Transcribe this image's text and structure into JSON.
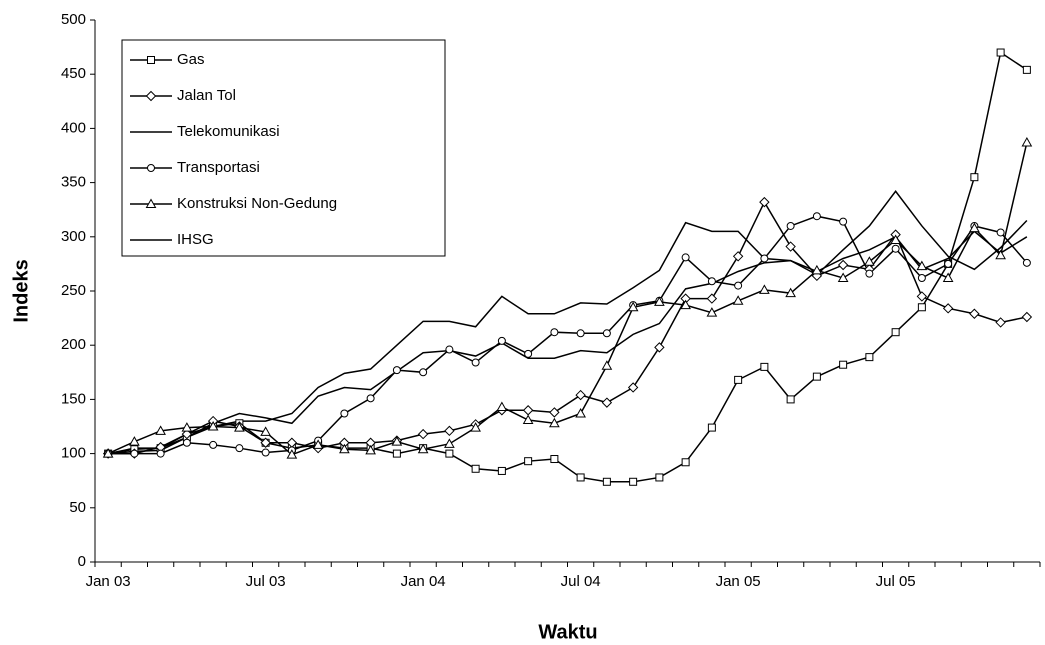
{
  "chart_data": {
    "type": "line",
    "x_label": "Waktu",
    "y_label": "Indeks",
    "categories": [
      "Jan 03",
      null,
      null,
      null,
      null,
      null,
      "Jul 03",
      null,
      null,
      null,
      null,
      null,
      "Jan 04",
      null,
      null,
      null,
      null,
      null,
      "Jul 04",
      null,
      null,
      null,
      null,
      null,
      "Jan 05",
      null,
      null,
      null,
      null,
      null,
      "Jul 05",
      null,
      null,
      null,
      null,
      null
    ],
    "ylim": [
      0,
      500
    ],
    "yticks": [
      0,
      50,
      100,
      150,
      200,
      250,
      300,
      350,
      400,
      450,
      500
    ],
    "grid": false,
    "legend": "upper left",
    "series": [
      {
        "name": "Gas",
        "color": "#000000",
        "marker": "square",
        "values": [
          100,
          104,
          105,
          115,
          125,
          128,
          110,
          105,
          108,
          105,
          105,
          100,
          105,
          100,
          86,
          84,
          93,
          95,
          78,
          74,
          74,
          78,
          92,
          124,
          168,
          180,
          150,
          171,
          182,
          189,
          212,
          235,
          275,
          355,
          470,
          454
        ]
      },
      {
        "name": "Jalan Tol",
        "color": "#000000",
        "marker": "diamond",
        "values": [
          100,
          100,
          106,
          118,
          130,
          125,
          110,
          110,
          105,
          110,
          110,
          112,
          118,
          121,
          127,
          140,
          140,
          138,
          154,
          147,
          161,
          198,
          243,
          243,
          282,
          332,
          291,
          264,
          274,
          270,
          302,
          245,
          234,
          229,
          221,
          226
        ]
      },
      {
        "name": "Telekomunikasi",
        "color": "#000000",
        "marker": "none",
        "values": [
          100,
          105,
          105,
          118,
          125,
          130,
          130,
          137,
          161,
          174,
          178,
          200,
          222,
          222,
          217,
          245,
          229,
          229,
          239,
          238,
          253,
          269,
          313,
          305,
          305,
          280,
          278,
          265,
          288,
          310,
          342,
          310,
          282,
          270,
          290,
          315
        ]
      },
      {
        "name": "Transportasi",
        "color": "#000000",
        "marker": "circle",
        "values": [
          100,
          100,
          100,
          110,
          108,
          105,
          101,
          103,
          112,
          137,
          151,
          177,
          175,
          196,
          184,
          204,
          192,
          212,
          211,
          211,
          237,
          241,
          281,
          259,
          255,
          280,
          310,
          319,
          314,
          266,
          289,
          262,
          275,
          310,
          304,
          276
        ]
      },
      {
        "name": "Konstruksi Non-Gedung",
        "color": "#000000",
        "marker": "triangle",
        "values": [
          100,
          111,
          121,
          124,
          125,
          124,
          120,
          99,
          108,
          104,
          103,
          111,
          104,
          109,
          124,
          143,
          131,
          128,
          137,
          181,
          235,
          240,
          237,
          230,
          241,
          251,
          248,
          269,
          262,
          277,
          297,
          273,
          262,
          308,
          283,
          387
        ]
      },
      {
        "name": "IHSG",
        "color": "#000000",
        "marker": "none",
        "values": [
          100,
          102,
          103,
          115,
          128,
          137,
          133,
          128,
          153,
          161,
          159,
          176,
          193,
          195,
          190,
          202,
          188,
          188,
          195,
          193,
          210,
          220,
          252,
          257,
          268,
          276,
          278,
          268,
          280,
          288,
          300,
          270,
          280,
          305,
          285,
          300
        ]
      }
    ]
  }
}
